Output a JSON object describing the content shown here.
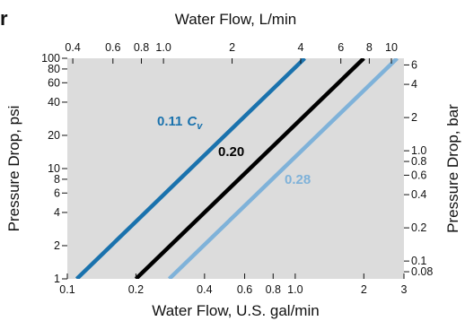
{
  "corner_label": "r",
  "chart_data": {
    "type": "line",
    "title": "",
    "x_bottom": {
      "label": "Water Flow, U.S. gal/min",
      "scale": "log",
      "range": [
        0.1,
        3
      ],
      "ticks": [
        0.1,
        0.2,
        0.4,
        0.6,
        0.8,
        1.0,
        2,
        3
      ],
      "tick_labels": [
        "0.1",
        "0.2",
        "0.4",
        "0.6",
        "0.8",
        "1.0",
        "2",
        "3"
      ]
    },
    "x_top": {
      "label": "Water Flow, L/min",
      "scale": "log",
      "ticks": [
        0.4,
        0.6,
        0.8,
        1.0,
        2,
        4,
        6,
        8,
        10
      ],
      "tick_labels": [
        "0.4",
        "0.6",
        "0.8",
        "1.0",
        "2",
        "4",
        "6",
        "8",
        "10"
      ]
    },
    "y_left": {
      "label": "Pressure Drop, psi",
      "scale": "log",
      "range": [
        1,
        100
      ],
      "ticks": [
        1,
        2,
        4,
        6,
        8,
        10,
        20,
        40,
        60,
        80,
        100
      ],
      "tick_labels": [
        "1",
        "2",
        "4",
        "6",
        "8",
        "10",
        "20",
        "40",
        "60",
        "80",
        "100"
      ]
    },
    "y_right": {
      "label": "Pressure Drop, bar",
      "scale": "log",
      "ticks": [
        0.08,
        0.1,
        0.2,
        0.4,
        0.6,
        0.8,
        1.0,
        2,
        4,
        6
      ],
      "tick_labels": [
        "0.08",
        "0.1",
        "0.2",
        "0.4",
        "0.6",
        "0.8",
        "1.0",
        "2",
        "4",
        "6"
      ]
    },
    "series": [
      {
        "name": "0.11",
        "label_suffix": "C",
        "label_subscript": "v",
        "color": "#1a72ad",
        "points": [
          [
            0.11,
            1
          ],
          [
            1.1,
            100
          ]
        ]
      },
      {
        "name": "0.20",
        "color": "#000000",
        "points": [
          [
            0.2,
            1
          ],
          [
            2.0,
            100
          ]
        ]
      },
      {
        "name": "0.28",
        "color": "#7fb2d9",
        "points": [
          [
            0.28,
            1
          ],
          [
            2.8,
            100
          ]
        ]
      }
    ],
    "grid": false,
    "plot_background": "#dcdcdc"
  }
}
